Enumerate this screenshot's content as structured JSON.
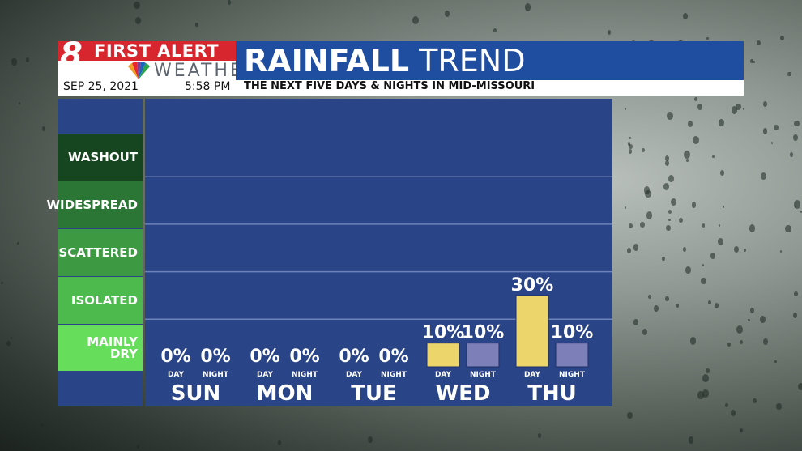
{
  "header": {
    "logo_number": "8",
    "logo_first_alert": "FIRST ALERT",
    "logo_weather": "WEATHER",
    "title_bold": "RAINFALL",
    "title_light": "TREND",
    "date": "SEP 25, 2021",
    "time": "5:58 PM",
    "subtitle": "THE NEXT FIVE DAYS & NIGHTS IN MID-MISSOURI"
  },
  "levels": [
    {
      "label": "WASHOUT",
      "color": "#15461f"
    },
    {
      "label": "WIDESPREAD",
      "color": "#2b7535"
    },
    {
      "label": "SCATTERED",
      "color": "#3d9a42"
    },
    {
      "label": "ISOLATED",
      "color": "#4dba4d"
    },
    {
      "label": "MAINLY DRY",
      "color": "#66de5c"
    }
  ],
  "colors": {
    "day_bar": "#ecd56a",
    "night_bar": "#7c7fb8",
    "plot_bg": "#2a4488",
    "gridline": "#6d82b8"
  },
  "chart_data": {
    "type": "bar",
    "categories": [
      "SUN",
      "MON",
      "TUE",
      "WED",
      "THU"
    ],
    "series": [
      {
        "name": "DAY",
        "values": [
          0,
          0,
          0,
          10,
          30
        ]
      },
      {
        "name": "NIGHT",
        "values": [
          0,
          0,
          0,
          10,
          10
        ]
      }
    ],
    "value_labels": {
      "DAY": [
        "0%",
        "0%",
        "0%",
        "10%",
        "30%"
      ],
      "NIGHT": [
        "0%",
        "0%",
        "0%",
        "10%",
        "10%"
      ]
    },
    "ylabel": "",
    "ylim": [
      0,
      100
    ],
    "grid": true
  }
}
